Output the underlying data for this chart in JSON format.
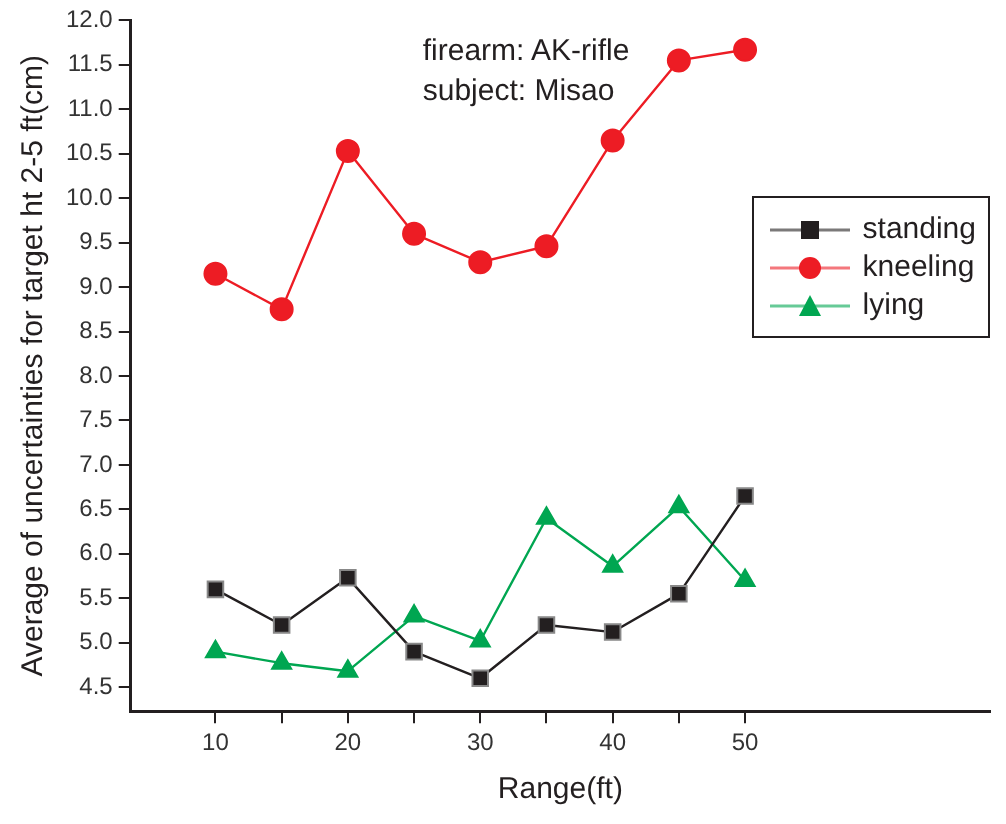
{
  "chart_data": {
    "type": "line",
    "xlabel": "Range(ft)",
    "ylabel": "Average of uncertainties for target ht 2-5 ft(cm)",
    "annotations": [
      "firearm: AK-rifle",
      "subject: Misao"
    ],
    "x": [
      10,
      15,
      20,
      25,
      30,
      35,
      40,
      45,
      50
    ],
    "series": [
      {
        "name": "standing",
        "color": "#231f20",
        "marker": "square",
        "values": [
          5.6,
          5.2,
          5.73,
          4.9,
          4.6,
          5.2,
          5.12,
          5.55,
          6.65
        ]
      },
      {
        "name": "kneeling",
        "color": "#ed1c24",
        "marker": "circle",
        "values": [
          9.15,
          8.75,
          10.53,
          9.6,
          9.28,
          9.46,
          10.65,
          11.55,
          11.67
        ]
      },
      {
        "name": "lying",
        "color": "#00a651",
        "marker": "triangle",
        "values": [
          4.9,
          4.77,
          4.68,
          5.3,
          5.02,
          6.4,
          5.86,
          6.53,
          5.7
        ]
      }
    ],
    "xlim": [
      3.6,
      68.5
    ],
    "xticks": [
      10,
      {
        "value": 15,
        "label": null
      },
      20,
      {
        "value": 25,
        "label": null
      },
      30,
      {
        "value": 35,
        "label": null
      },
      40,
      {
        "value": 45,
        "label": null
      },
      50
    ],
    "ylim": [
      4.23,
      12.0
    ],
    "yticks": [
      {
        "value": 4.5,
        "label": "4.5"
      },
      {
        "value": 5,
        "label": "5.0"
      },
      {
        "value": 5.5,
        "label": "5.5"
      },
      {
        "value": 6,
        "label": "6.0"
      },
      {
        "value": 6.5,
        "label": "6.5"
      },
      {
        "value": 7,
        "label": "7.0"
      },
      {
        "value": 7.5,
        "label": "7.5"
      },
      {
        "value": 8,
        "label": "8.0"
      },
      {
        "value": 8.5,
        "label": "8.5"
      },
      {
        "value": 9,
        "label": "9.0"
      },
      {
        "value": 9.5,
        "label": "9.5"
      },
      {
        "value": 10,
        "label": "10.0"
      },
      {
        "value": 10.5,
        "label": "10.5"
      },
      {
        "value": 11,
        "label": "11.0"
      },
      {
        "value": 11.5,
        "label": "11.5"
      },
      {
        "value": 12,
        "label": "12.0"
      }
    ],
    "grid": false,
    "legend": "right",
    "line_style": "solid"
  }
}
